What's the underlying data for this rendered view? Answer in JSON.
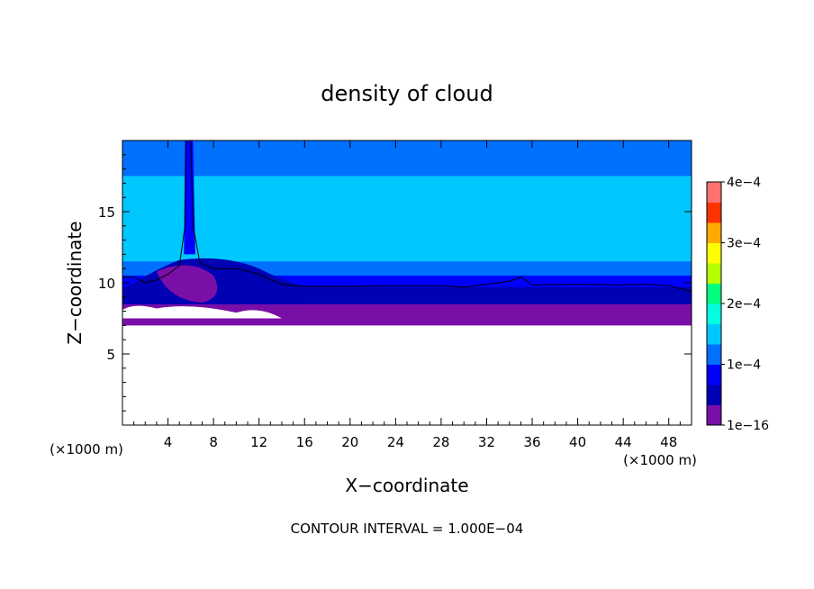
{
  "chart_data": {
    "type": "heatmap",
    "title": "density of cloud",
    "xlabel": "X−coordinate",
    "ylabel": "Z−coordinate",
    "x_unit_label_left": "(×1000 m)",
    "x_unit_label_right": "(×1000 m)",
    "xlim": [
      0,
      50
    ],
    "ylim": [
      0,
      20
    ],
    "x_ticks": [
      {
        "value": 4,
        "label": "4"
      },
      {
        "value": 8,
        "label": "8"
      },
      {
        "value": 12,
        "label": "12"
      },
      {
        "value": 16,
        "label": "16"
      },
      {
        "value": 20,
        "label": "20"
      },
      {
        "value": 24,
        "label": "24"
      },
      {
        "value": 28,
        "label": "28"
      },
      {
        "value": 32,
        "label": "32"
      },
      {
        "value": 36,
        "label": "36"
      },
      {
        "value": 40,
        "label": "40"
      },
      {
        "value": 44,
        "label": "44"
      },
      {
        "value": 48,
        "label": "48"
      }
    ],
    "y_ticks": [
      {
        "value": 5,
        "label": "5"
      },
      {
        "value": 10,
        "label": "10"
      },
      {
        "value": 15,
        "label": "15"
      }
    ],
    "colorbar": {
      "min": 1e-16,
      "max": 0.0004,
      "ticks": [
        {
          "value": 1e-16,
          "label": "1e−16"
        },
        {
          "value": 0.0001,
          "label": "1e−4"
        },
        {
          "value": 0.0002,
          "label": "2e−4"
        },
        {
          "value": 0.0003,
          "label": "3e−4"
        },
        {
          "value": 0.0004,
          "label": "4e−4"
        }
      ],
      "colors": [
        "#7a0fa8",
        "#0000b4",
        "#0000ff",
        "#0070ff",
        "#00c8ff",
        "#00ffe0",
        "#00ff7f",
        "#b4ff00",
        "#ffff00",
        "#ffaa00",
        "#ff3300",
        "#ff7070"
      ]
    },
    "contour_interval_text": "CONTOUR INTERVAL =  1.000E−04",
    "field": {
      "cloud_base_z": 7.0,
      "layers": [
        {
          "z_range": [
            17.5,
            20
          ],
          "value": 0.00012
        },
        {
          "z_range": [
            16.5,
            17.5
          ],
          "value": 0.00014
        },
        {
          "z_range": [
            12.5,
            16.5
          ],
          "value": 0.00016
        },
        {
          "z_range": [
            11.5,
            12.5
          ],
          "value": 0.00014
        },
        {
          "z_range": [
            10.5,
            11.5
          ],
          "value": 0.00011
        },
        {
          "z_range": [
            9.7,
            10.5
          ],
          "value": 9e-05
        },
        {
          "z_range": [
            8.5,
            9.7
          ],
          "value": 5e-05
        },
        {
          "z_range": [
            7.5,
            8.5
          ],
          "value": 2e-05
        },
        {
          "z_range": [
            7.0,
            7.5
          ],
          "value": 0.0
        }
      ],
      "contour_1e-4_z": [
        [
          0,
          10.4
        ],
        [
          1,
          10.4
        ],
        [
          2,
          10.0
        ],
        [
          3,
          10.2
        ],
        [
          4,
          10.6
        ],
        [
          5,
          11.2
        ],
        [
          5.5,
          14
        ],
        [
          5.6,
          20
        ],
        [
          6.0,
          20
        ],
        [
          6.2,
          14
        ],
        [
          6.8,
          11.4
        ],
        [
          8,
          11.0
        ],
        [
          10,
          11.0
        ],
        [
          12,
          10.6
        ],
        [
          13,
          10.2
        ],
        [
          14,
          9.9
        ],
        [
          16,
          9.75
        ],
        [
          20,
          9.75
        ],
        [
          24,
          9.8
        ],
        [
          28,
          9.8
        ],
        [
          30,
          9.7
        ],
        [
          32,
          9.9
        ],
        [
          34,
          10.1
        ],
        [
          35,
          10.4
        ],
        [
          36,
          9.85
        ],
        [
          40,
          9.9
        ],
        [
          44,
          9.85
        ],
        [
          46,
          9.9
        ],
        [
          48,
          9.8
        ],
        [
          50,
          9.4
        ]
      ]
    }
  }
}
